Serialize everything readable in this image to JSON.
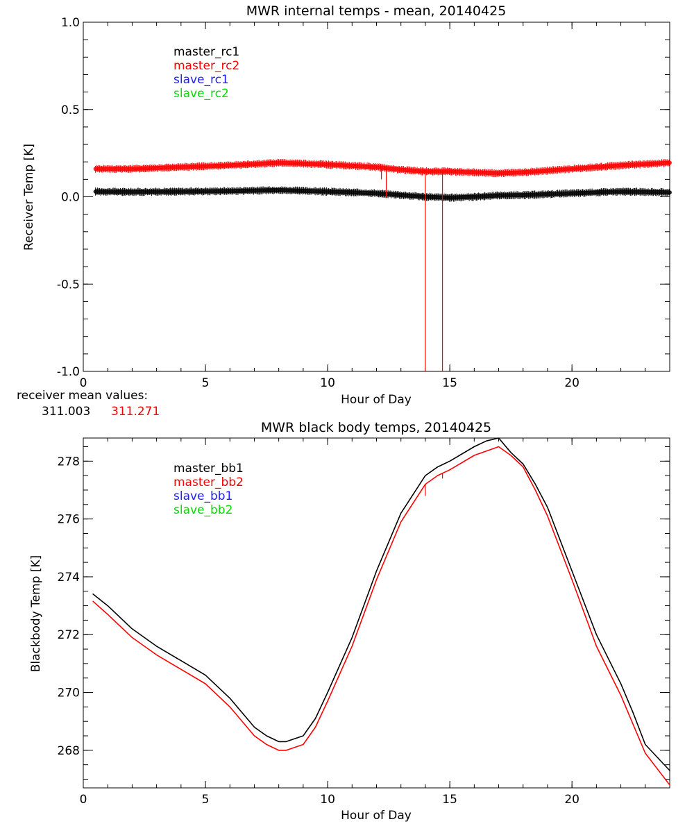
{
  "colors": {
    "black": "#000000",
    "red": "#ff0000",
    "blue": "#2020ff",
    "green": "#00e000"
  },
  "receiver_mean": {
    "label": "receiver mean values:",
    "values": [
      "311.003",
      "311.271"
    ]
  },
  "chart_data": [
    {
      "type": "line",
      "title": "MWR internal temps - mean, 20140425",
      "xlabel": "Hour of Day",
      "ylabel": "Receiver Temp [K]",
      "xlim": [
        0,
        24
      ],
      "ylim": [
        -1.0,
        1.0
      ],
      "xticks": [
        0,
        5,
        10,
        15,
        20
      ],
      "xtick_labels": [
        "0",
        "5",
        "10",
        "15",
        "20"
      ],
      "yticks": [
        -1.0,
        -0.5,
        0.0,
        0.5,
        1.0
      ],
      "ytick_labels": [
        "-1.0",
        "-0.5",
        "0.0",
        "0.5",
        "1.0"
      ],
      "legend_position": "top-left",
      "series": [
        {
          "name": "master_rc1",
          "color": "#000000",
          "x": [
            0.5,
            2,
            4,
            6,
            8,
            10,
            12,
            13,
            14,
            15,
            16,
            17,
            18,
            20,
            22,
            24
          ],
          "y": [
            0.03,
            0.028,
            0.03,
            0.033,
            0.038,
            0.03,
            0.02,
            0.01,
            0.0,
            -0.005,
            0.0,
            0.008,
            0.01,
            0.02,
            0.03,
            0.025
          ],
          "spikes": []
        },
        {
          "name": "master_rc2",
          "color": "#ff0000",
          "x": [
            0.5,
            2,
            4,
            6,
            8,
            10,
            12,
            13,
            14,
            15,
            16,
            17,
            18,
            20,
            22,
            24
          ],
          "y": [
            0.16,
            0.16,
            0.17,
            0.18,
            0.195,
            0.185,
            0.17,
            0.155,
            0.145,
            0.145,
            0.14,
            0.135,
            0.14,
            0.16,
            0.18,
            0.195
          ],
          "spikes": [
            [
              12.2,
              0.1
            ],
            [
              12.4,
              0.0
            ],
            [
              14.0,
              -1.0
            ],
            [
              14.7,
              -1.0
            ]
          ]
        },
        {
          "name": "slave_rc1",
          "color": "#2020ff",
          "x": [],
          "y": [],
          "spikes": []
        },
        {
          "name": "slave_rc2",
          "color": "#00e000",
          "x": [],
          "y": [],
          "spikes": []
        }
      ]
    },
    {
      "type": "line",
      "title": "MWR black body temps, 20140425",
      "xlabel": "Hour of Day",
      "ylabel": "Blackbody Temp [K]",
      "xlim": [
        0,
        24
      ],
      "ylim": [
        266.7,
        278.8
      ],
      "xticks": [
        0,
        5,
        10,
        15,
        20
      ],
      "xtick_labels": [
        "0",
        "5",
        "10",
        "15",
        "20"
      ],
      "yticks": [
        268,
        270,
        272,
        274,
        276,
        278
      ],
      "ytick_labels": [
        "268",
        "270",
        "272",
        "274",
        "276",
        "278"
      ],
      "legend_position": "top-left",
      "series": [
        {
          "name": "master_bb1",
          "color": "#000000",
          "x": [
            0.4,
            1.0,
            2.0,
            3.0,
            4.0,
            5.0,
            6.0,
            7.0,
            7.5,
            8.0,
            8.3,
            9.0,
            9.5,
            10.0,
            11.0,
            12.0,
            13.0,
            14.0,
            14.5,
            15.0,
            16.0,
            16.5,
            17.0,
            17.5,
            18.0,
            18.5,
            19.0,
            20.0,
            21.0,
            22.0,
            22.5,
            23.0,
            24.0
          ],
          "y": [
            273.4,
            273.0,
            272.2,
            271.6,
            271.1,
            270.6,
            269.8,
            268.8,
            268.5,
            268.3,
            268.3,
            268.5,
            269.1,
            270.0,
            271.9,
            274.2,
            276.2,
            277.5,
            277.8,
            278.0,
            278.5,
            278.7,
            278.8,
            278.3,
            277.9,
            277.2,
            276.4,
            274.2,
            272.0,
            270.3,
            269.3,
            268.2,
            267.3
          ],
          "spikes": []
        },
        {
          "name": "master_bb2",
          "color": "#ff0000",
          "x": [
            0.4,
            1.0,
            2.0,
            3.0,
            4.0,
            5.0,
            6.0,
            7.0,
            7.5,
            8.0,
            8.3,
            9.0,
            9.5,
            10.0,
            11.0,
            12.0,
            13.0,
            14.0,
            14.5,
            15.0,
            16.0,
            16.5,
            17.0,
            17.5,
            18.0,
            18.5,
            19.0,
            20.0,
            21.0,
            22.0,
            22.5,
            23.0,
            24.0
          ],
          "y": [
            273.15,
            272.7,
            271.9,
            271.3,
            270.8,
            270.3,
            269.5,
            268.5,
            268.2,
            268.0,
            268.0,
            268.2,
            268.8,
            269.7,
            271.6,
            273.9,
            275.9,
            277.2,
            277.5,
            277.7,
            278.2,
            278.35,
            278.5,
            278.2,
            277.8,
            277.0,
            276.1,
            273.9,
            271.6,
            269.9,
            268.9,
            267.9,
            266.8
          ],
          "spikes": [
            [
              14.0,
              276.8
            ],
            [
              14.7,
              277.4
            ]
          ]
        },
        {
          "name": "slave_bb1",
          "color": "#2020ff",
          "x": [],
          "y": [],
          "spikes": []
        },
        {
          "name": "slave_bb2",
          "color": "#00e000",
          "x": [],
          "y": [],
          "spikes": []
        }
      ]
    }
  ]
}
